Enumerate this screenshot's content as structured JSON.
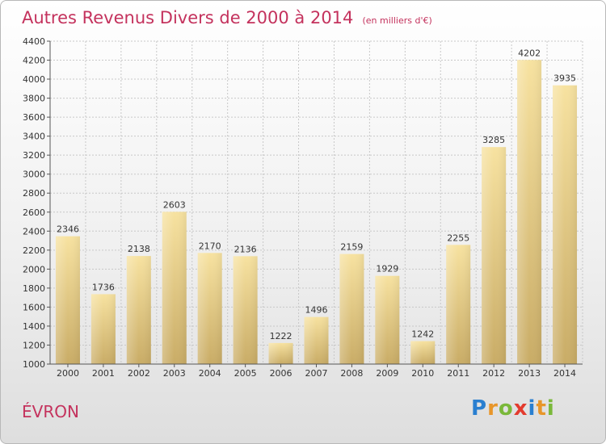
{
  "header": {
    "title": "Autres Revenus Divers de 2000 à 2014",
    "subtitle": "(en milliers d'€)"
  },
  "footer": {
    "city": "ÉVRON",
    "logo": {
      "letters": [
        "P",
        "r",
        "o",
        "x",
        "i",
        "t",
        "i"
      ],
      "colors": [
        "#2a7fd0",
        "#e8962a",
        "#7ab83a",
        "#e33b2e",
        "#2a7fd0",
        "#e8962a",
        "#7ab83a"
      ]
    }
  },
  "chart_data": {
    "type": "bar",
    "categories": [
      "2000",
      "2001",
      "2002",
      "2003",
      "2004",
      "2005",
      "2006",
      "2007",
      "2008",
      "2009",
      "2010",
      "2011",
      "2012",
      "2013",
      "2014"
    ],
    "values": [
      2346,
      1736,
      2138,
      2603,
      2170,
      2136,
      1222,
      1496,
      2159,
      1929,
      1242,
      2255,
      3285,
      4202,
      3935
    ],
    "ylim": [
      1000,
      4400
    ],
    "yticks": [
      1000,
      1200,
      1400,
      1600,
      1800,
      2000,
      2200,
      2400,
      2600,
      2800,
      3000,
      3200,
      3400,
      3600,
      3800,
      4000,
      4200,
      4400
    ],
    "grid": true,
    "bar_color": "#e6cc86"
  }
}
